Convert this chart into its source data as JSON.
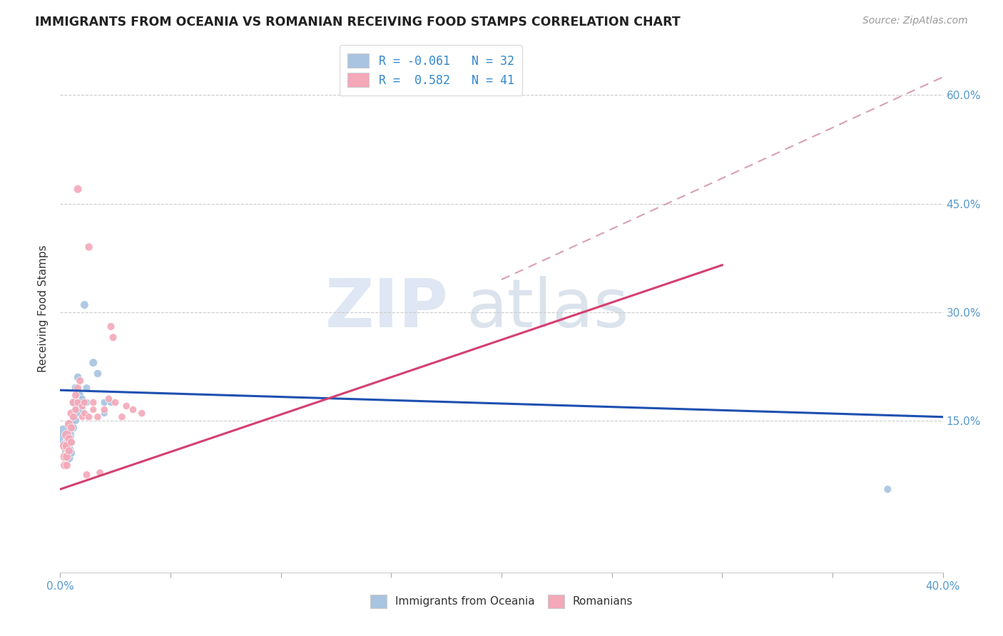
{
  "title": "IMMIGRANTS FROM OCEANIA VS ROMANIAN RECEIVING FOOD STAMPS CORRELATION CHART",
  "source": "Source: ZipAtlas.com",
  "ylabel": "Receiving Food Stamps",
  "yticks": [
    "15.0%",
    "30.0%",
    "45.0%",
    "60.0%"
  ],
  "ytick_vals": [
    0.15,
    0.3,
    0.45,
    0.6
  ],
  "xrange": [
    0.0,
    0.4
  ],
  "yrange": [
    -0.06,
    0.67
  ],
  "legend_blue_label": "R = -0.061   N = 32",
  "legend_pink_label": "R =  0.582   N = 41",
  "oceania_color": "#a8c4e0",
  "romanian_color": "#f4a8b8",
  "oceania_line_color": "#1e50b0",
  "romanian_line_color": "#d44070",
  "dash_line_color": "#d8a0b0",
  "watermark_zip": "ZIP",
  "watermark_atlas": "atlas",
  "oceania_points": [
    [
      0.002,
      0.13
    ],
    [
      0.003,
      0.118
    ],
    [
      0.003,
      0.108
    ],
    [
      0.003,
      0.095
    ],
    [
      0.004,
      0.125
    ],
    [
      0.004,
      0.11
    ],
    [
      0.004,
      0.098
    ],
    [
      0.005,
      0.145
    ],
    [
      0.005,
      0.12
    ],
    [
      0.005,
      0.105
    ],
    [
      0.006,
      0.175
    ],
    [
      0.006,
      0.155
    ],
    [
      0.006,
      0.14
    ],
    [
      0.007,
      0.195
    ],
    [
      0.007,
      0.165
    ],
    [
      0.007,
      0.15
    ],
    [
      0.008,
      0.21
    ],
    [
      0.008,
      0.175
    ],
    [
      0.008,
      0.16
    ],
    [
      0.009,
      0.185
    ],
    [
      0.009,
      0.17
    ],
    [
      0.01,
      0.18
    ],
    [
      0.01,
      0.165
    ],
    [
      0.011,
      0.31
    ],
    [
      0.012,
      0.195
    ],
    [
      0.012,
      0.175
    ],
    [
      0.015,
      0.23
    ],
    [
      0.017,
      0.215
    ],
    [
      0.02,
      0.175
    ],
    [
      0.02,
      0.16
    ],
    [
      0.023,
      0.175
    ],
    [
      0.375,
      0.055
    ]
  ],
  "oceania_sizes": [
    400,
    120,
    100,
    80,
    120,
    100,
    80,
    100,
    80,
    70,
    80,
    70,
    65,
    70,
    65,
    60,
    65,
    60,
    55,
    60,
    55,
    55,
    50,
    70,
    60,
    55,
    70,
    65,
    55,
    50,
    55,
    60
  ],
  "romanian_points": [
    [
      0.002,
      0.115
    ],
    [
      0.002,
      0.1
    ],
    [
      0.002,
      0.088
    ],
    [
      0.003,
      0.13
    ],
    [
      0.003,
      0.115
    ],
    [
      0.003,
      0.1
    ],
    [
      0.003,
      0.088
    ],
    [
      0.004,
      0.145
    ],
    [
      0.004,
      0.125
    ],
    [
      0.004,
      0.108
    ],
    [
      0.005,
      0.16
    ],
    [
      0.005,
      0.14
    ],
    [
      0.005,
      0.12
    ],
    [
      0.006,
      0.175
    ],
    [
      0.006,
      0.155
    ],
    [
      0.007,
      0.185
    ],
    [
      0.007,
      0.165
    ],
    [
      0.008,
      0.195
    ],
    [
      0.008,
      0.175
    ],
    [
      0.009,
      0.205
    ],
    [
      0.01,
      0.17
    ],
    [
      0.01,
      0.155
    ],
    [
      0.011,
      0.175
    ],
    [
      0.011,
      0.16
    ],
    [
      0.012,
      0.075
    ],
    [
      0.013,
      0.155
    ],
    [
      0.015,
      0.175
    ],
    [
      0.015,
      0.165
    ],
    [
      0.017,
      0.155
    ],
    [
      0.018,
      0.078
    ],
    [
      0.02,
      0.165
    ],
    [
      0.022,
      0.18
    ],
    [
      0.025,
      0.175
    ],
    [
      0.028,
      0.155
    ],
    [
      0.03,
      0.17
    ],
    [
      0.033,
      0.165
    ],
    [
      0.037,
      0.16
    ],
    [
      0.008,
      0.47
    ],
    [
      0.013,
      0.39
    ],
    [
      0.023,
      0.28
    ],
    [
      0.024,
      0.265
    ]
  ],
  "romanian_sizes": [
    100,
    80,
    70,
    100,
    85,
    75,
    65,
    80,
    70,
    65,
    70,
    65,
    60,
    65,
    60,
    60,
    55,
    60,
    55,
    60,
    55,
    50,
    55,
    50,
    60,
    55,
    55,
    50,
    55,
    55,
    55,
    55,
    55,
    55,
    55,
    55,
    55,
    70,
    65,
    60,
    60
  ],
  "blue_line_x": [
    0.0,
    0.4
  ],
  "blue_line_y": [
    0.192,
    0.155
  ],
  "pink_line_x": [
    0.0,
    0.3
  ],
  "pink_line_y": [
    0.055,
    0.365
  ],
  "dash_line_x": [
    0.2,
    0.4
  ],
  "dash_line_y": [
    0.345,
    0.625
  ]
}
